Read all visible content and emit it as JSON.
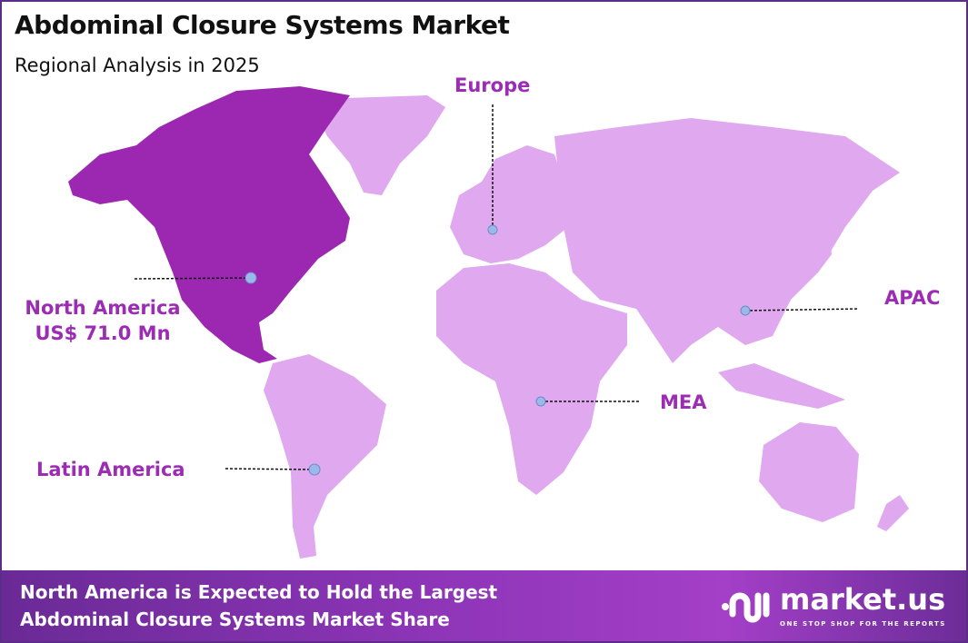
{
  "header": {
    "title": "Abdominal Closure Systems Market",
    "subtitle": "Regional Analysis in 2025"
  },
  "colors": {
    "highlight": "#9c27b0",
    "region": "#dfa8ef",
    "label": "#9c2cb4",
    "marker": "#9bb8e8",
    "border": "#5b2d86"
  },
  "regions": [
    {
      "name": "North America",
      "value": "US$ 71.0 Mn",
      "highlighted": true
    },
    {
      "name": "Europe",
      "highlighted": false
    },
    {
      "name": "APAC",
      "highlighted": false
    },
    {
      "name": "MEA",
      "highlighted": false
    },
    {
      "name": "Latin America",
      "highlighted": false
    }
  ],
  "footer": {
    "line1": "North America is Expected to Hold the Largest",
    "line2": "Abdominal Closure Systems Market Share"
  },
  "logo": {
    "name": "market.us",
    "tagline": "ONE STOP SHOP FOR THE REPORTS"
  }
}
